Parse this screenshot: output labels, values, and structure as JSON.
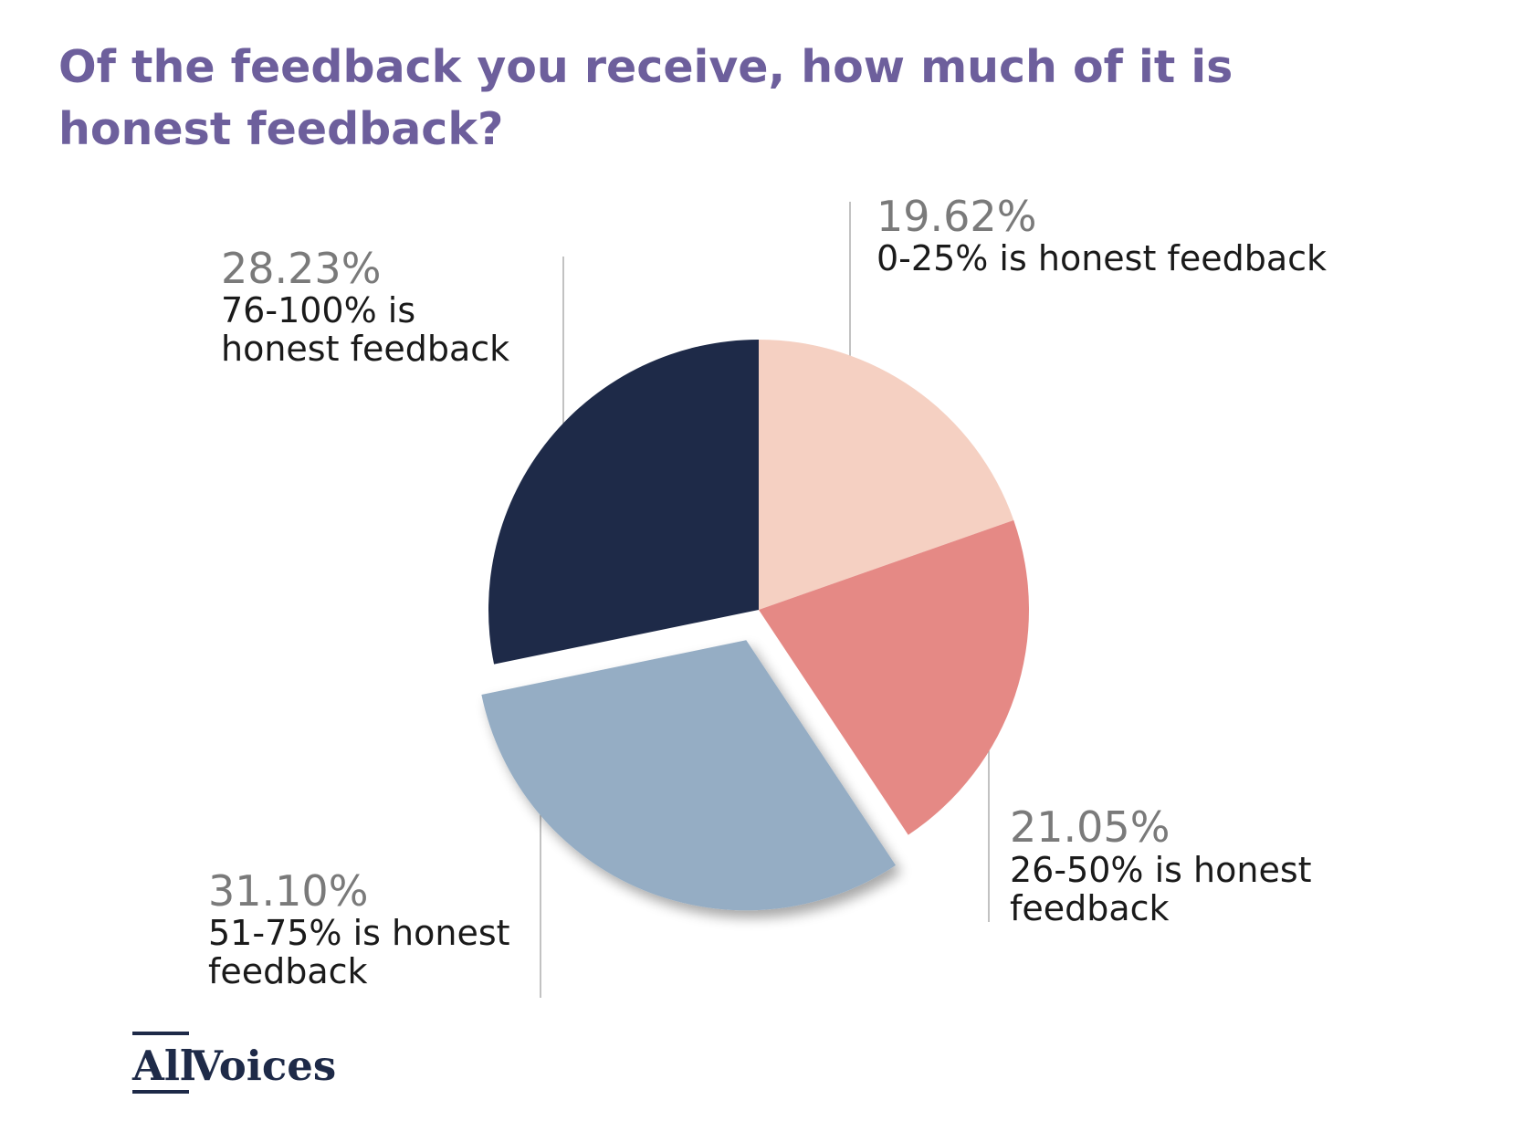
{
  "title": "Of the feedback you receive, how much of it is honest feedback?",
  "chart_data": {
    "type": "pie",
    "title": "Of the feedback you receive, how much of it is honest feedback?",
    "start_angle_deg": 0,
    "direction": "clockwise",
    "exploded": [
      "51-75% is honest feedback"
    ],
    "slices": [
      {
        "label": "0-25% is honest feedback",
        "value": 19.62,
        "value_label": "19.62%",
        "color": "#f5d0c2"
      },
      {
        "label": "26-50% is honest feedback",
        "value": 21.05,
        "value_label": "21.05%",
        "color": "#e58985"
      },
      {
        "label": "51-75% is honest feedback",
        "value": 31.1,
        "value_label": "31.10%",
        "color": "#95adc4"
      },
      {
        "label": "76-100% is honest feedback",
        "value": 28.23,
        "value_label": "28.23%",
        "color": "#1e2a48"
      }
    ]
  },
  "brand": {
    "name_part1": "All",
    "name_part2": "Voices",
    "color": "#1e2a48"
  }
}
